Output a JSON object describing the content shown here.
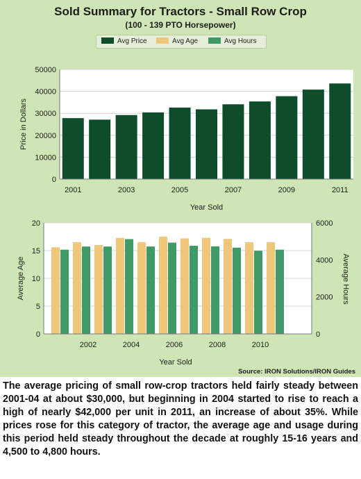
{
  "title": "Sold Summary for Tractors - Small Row Crop",
  "subtitle": "(100 - 139 PTO Horsepower)",
  "legend": [
    {
      "label": "Avg Price",
      "color": "#0d4d2b"
    },
    {
      "label": "Avg Age",
      "color": "#efc77a"
    },
    {
      "label": "Avg Hours",
      "color": "#3f9a67"
    }
  ],
  "chart_data": [
    {
      "type": "bar",
      "x": [
        2001,
        2002,
        2003,
        2004,
        2005,
        2006,
        2007,
        2008,
        2009,
        2010,
        2011
      ],
      "x_tick_labels": [
        "2001",
        "2003",
        "2005",
        "2007",
        "2009",
        "2011"
      ],
      "series": [
        {
          "name": "Avg Price",
          "color": "#0d4d2b",
          "values": [
            27800,
            27100,
            29200,
            30400,
            32600,
            31800,
            34100,
            35400,
            37800,
            40800,
            43600
          ]
        }
      ],
      "xlabel": "Year Sold",
      "ylabel": "Price in Dollars",
      "ylim": [
        0,
        50000
      ],
      "yticks": [
        0,
        10000,
        20000,
        30000,
        40000,
        50000
      ],
      "grid": true
    },
    {
      "type": "bar",
      "x": [
        2001,
        2002,
        2003,
        2004,
        2005,
        2006,
        2007,
        2008,
        2009,
        2010,
        2011
      ],
      "x_tick_labels": [
        "2002",
        "2004",
        "2006",
        "2008",
        "2010"
      ],
      "series": [
        {
          "name": "Avg Age",
          "axis": "left",
          "color": "#efc77a",
          "values": [
            15.6,
            16.5,
            16.0,
            17.3,
            16.5,
            17.5,
            17.2,
            17.3,
            17.1,
            16.5,
            16.5
          ]
        },
        {
          "name": "Avg Hours",
          "axis": "right",
          "color": "#3f9a67",
          "values": [
            4550,
            4720,
            4720,
            5120,
            4720,
            4930,
            4760,
            4730,
            4660,
            4490,
            4550
          ]
        }
      ],
      "xlabel": "Year Sold",
      "ylabel": "Average Age",
      "ylabel_right": "Average Hours",
      "ylim": [
        0,
        20
      ],
      "yticks": [
        0,
        5,
        10,
        15,
        20
      ],
      "ylim_right": [
        0,
        6000
      ],
      "yticks_right": [
        0,
        2000,
        4000,
        6000
      ],
      "grid": true
    }
  ],
  "source": "Source: IRON Solutions/IRON Guides",
  "caption": "The average pricing of small row-crop tractors held fairly steady between 2001-04 at about $30,000, but beginning in 2004 started to rise to reach a high of nearly $42,000 per unit in 2011, an increase of about 35%. While prices rose for this category of tractor, the average age and usage during this period held steady throughout the decade at roughly 15-16 years and 4,500 to 4,800 hours."
}
